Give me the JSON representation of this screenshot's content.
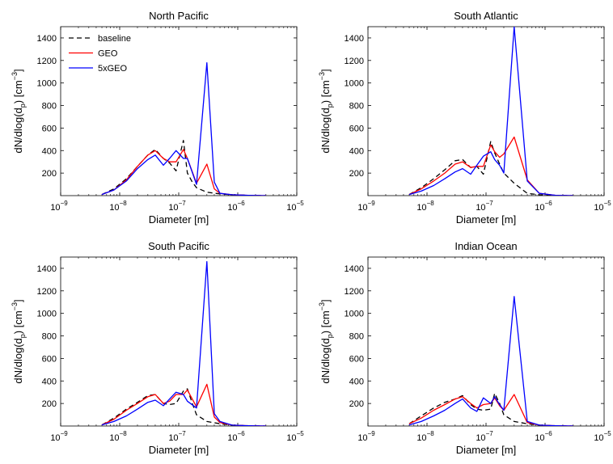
{
  "figure": {
    "y_tick_labels": [
      "200",
      "400",
      "600",
      "800",
      "1000",
      "1200",
      "1400"
    ],
    "x_tick_bases": [
      "10",
      "10",
      "10",
      "10",
      "10"
    ],
    "x_tick_exponents": [
      "−9",
      "−8",
      "−7",
      "−6",
      "−5"
    ],
    "ylabel_main": "dN/dlog(d",
    "ylabel_sub": "p",
    "ylabel_mid": ") [cm",
    "ylabel_sup": "−3",
    "ylabel_end": "]",
    "xlabel": "Diameter [m]"
  },
  "legend": {
    "entries": [
      {
        "label": "baseline",
        "color": "#000000",
        "dash": "6,4"
      },
      {
        "label": "GEO",
        "color": "#ff0000",
        "dash": ""
      },
      {
        "label": "5xGEO",
        "color": "#0000ff",
        "dash": ""
      }
    ]
  },
  "chart_data": [
    {
      "type": "line",
      "title": "North Pacific",
      "xscale": "log",
      "xlim": [
        1e-09,
        1e-05
      ],
      "ylim": [
        0,
        1500
      ],
      "xlabel": "Diameter [m]",
      "ylabel": "dN/dlog(d_p) [cm^-3]",
      "legend": "top-left",
      "series": [
        {
          "name": "baseline",
          "color": "#000000",
          "style": "dashed",
          "x": [
            5e-09,
            8e-09,
            1.3e-08,
            2e-08,
            3e-08,
            4e-08,
            5.5e-08,
            7e-08,
            9e-08,
            1.2e-07,
            1.4e-07,
            1.7e-07,
            2e-07,
            3e-07,
            5e-07,
            8e-07,
            1.5e-06,
            3e-06
          ],
          "y": [
            10,
            60,
            150,
            260,
            360,
            410,
            330,
            290,
            220,
            490,
            200,
            120,
            70,
            30,
            15,
            8,
            3,
            0
          ]
        },
        {
          "name": "GEO",
          "color": "#ff0000",
          "style": "solid",
          "x": [
            5e-09,
            8e-09,
            1.3e-08,
            2e-08,
            3e-08,
            4e-08,
            5.5e-08,
            7e-08,
            9e-08,
            1.2e-07,
            1.4e-07,
            2e-07,
            3e-07,
            4e-07,
            5e-07,
            8e-07,
            1.5e-06,
            3e-06
          ],
          "y": [
            10,
            50,
            140,
            260,
            360,
            400,
            330,
            300,
            300,
            410,
            330,
            110,
            280,
            60,
            20,
            8,
            3,
            0
          ]
        },
        {
          "name": "5xGEO",
          "color": "#0000ff",
          "style": "solid",
          "x": [
            5e-09,
            8e-09,
            1.3e-08,
            2e-08,
            3e-08,
            4e-08,
            5.5e-08,
            7e-08,
            9e-08,
            1.2e-07,
            1.4e-07,
            2e-07,
            3e-07,
            4e-07,
            5e-07,
            8e-07,
            1.5e-06,
            3e-06
          ],
          "y": [
            10,
            50,
            130,
            240,
            320,
            360,
            270,
            330,
            400,
            330,
            330,
            100,
            1180,
            120,
            20,
            8,
            3,
            0
          ]
        }
      ]
    },
    {
      "type": "line",
      "title": "South Atlantic",
      "xscale": "log",
      "xlim": [
        1e-09,
        1e-05
      ],
      "ylim": [
        0,
        1500
      ],
      "xlabel": "Diameter [m]",
      "ylabel": "dN/dlog(d_p) [cm^-3]",
      "series": [
        {
          "name": "baseline",
          "color": "#000000",
          "style": "dashed",
          "x": [
            5e-09,
            8e-09,
            1.3e-08,
            2e-08,
            3e-08,
            4e-08,
            5.5e-08,
            7e-08,
            9e-08,
            1.2e-07,
            1.4e-07,
            1.7e-07,
            2e-07,
            3e-07,
            5e-07,
            8e-07,
            1.5e-06,
            3e-06
          ],
          "y": [
            10,
            70,
            150,
            230,
            310,
            320,
            250,
            260,
            190,
            480,
            380,
            280,
            200,
            110,
            20,
            8,
            3,
            0
          ]
        },
        {
          "name": "GEO",
          "color": "#ff0000",
          "style": "solid",
          "x": [
            5e-09,
            8e-09,
            1.3e-08,
            2e-08,
            3e-08,
            4e-08,
            5.5e-08,
            7e-08,
            9e-08,
            1.2e-07,
            1.4e-07,
            1.7e-07,
            2e-07,
            3e-07,
            5e-07,
            8e-07,
            1.5e-06,
            3e-06
          ],
          "y": [
            10,
            60,
            130,
            200,
            280,
            300,
            250,
            260,
            260,
            450,
            390,
            340,
            370,
            520,
            140,
            20,
            3,
            0
          ]
        },
        {
          "name": "5xGEO",
          "color": "#0000ff",
          "style": "solid",
          "x": [
            5e-09,
            8e-09,
            1.3e-08,
            2e-08,
            3e-08,
            4e-08,
            5.5e-08,
            7e-08,
            9e-08,
            1.2e-07,
            1.4e-07,
            1.7e-07,
            2e-07,
            3e-07,
            5e-07,
            8e-07,
            1.5e-06,
            3e-06
          ],
          "y": [
            10,
            40,
            90,
            150,
            210,
            240,
            190,
            270,
            350,
            390,
            320,
            270,
            200,
            1500,
            130,
            20,
            3,
            0
          ]
        }
      ]
    },
    {
      "type": "line",
      "title": "South Pacific",
      "xscale": "log",
      "xlim": [
        1e-09,
        1e-05
      ],
      "ylim": [
        0,
        1500
      ],
      "xlabel": "Diameter [m]",
      "ylabel": "dN/dlog(d_p) [cm^-3]",
      "series": [
        {
          "name": "baseline",
          "color": "#000000",
          "style": "dashed",
          "x": [
            5e-09,
            8e-09,
            1.3e-08,
            2e-08,
            3e-08,
            4e-08,
            5.5e-08,
            7e-08,
            9e-08,
            1.2e-07,
            1.4e-07,
            1.7e-07,
            2e-07,
            3e-07,
            5e-07,
            8e-07,
            1.5e-06,
            3e-06
          ],
          "y": [
            10,
            70,
            150,
            210,
            270,
            280,
            200,
            190,
            200,
            310,
            330,
            200,
            100,
            40,
            20,
            8,
            3,
            0
          ]
        },
        {
          "name": "GEO",
          "color": "#ff0000",
          "style": "solid",
          "x": [
            5e-09,
            8e-09,
            1.3e-08,
            2e-08,
            3e-08,
            4e-08,
            5.5e-08,
            7e-08,
            9e-08,
            1.2e-07,
            1.4e-07,
            2e-07,
            3e-07,
            4e-07,
            5e-07,
            8e-07,
            1.5e-06,
            3e-06
          ],
          "y": [
            10,
            60,
            140,
            200,
            260,
            280,
            200,
            220,
            280,
            280,
            320,
            170,
            370,
            80,
            30,
            8,
            3,
            0
          ]
        },
        {
          "name": "5xGEO",
          "color": "#0000ff",
          "style": "solid",
          "x": [
            5e-09,
            8e-09,
            1.3e-08,
            2e-08,
            3e-08,
            4e-08,
            5.5e-08,
            7e-08,
            9e-08,
            1.2e-07,
            1.4e-07,
            2e-07,
            3e-07,
            4e-07,
            5e-07,
            8e-07,
            1.5e-06,
            3e-06
          ],
          "y": [
            10,
            40,
            90,
            150,
            210,
            230,
            180,
            240,
            300,
            280,
            220,
            160,
            1460,
            110,
            40,
            8,
            3,
            0
          ]
        }
      ]
    },
    {
      "type": "line",
      "title": "Indian Ocean",
      "xscale": "log",
      "xlim": [
        1e-09,
        1e-05
      ],
      "ylim": [
        0,
        1500
      ],
      "xlabel": "Diameter [m]",
      "ylabel": "dN/dlog(d_p) [cm^-3]",
      "series": [
        {
          "name": "baseline",
          "color": "#000000",
          "style": "dashed",
          "x": [
            5e-09,
            8e-09,
            1.3e-08,
            2e-08,
            3e-08,
            4e-08,
            5.5e-08,
            7e-08,
            9e-08,
            1.2e-07,
            1.4e-07,
            1.7e-07,
            2e-07,
            3e-07,
            5e-07,
            8e-07,
            1.5e-06,
            3e-06
          ],
          "y": [
            20,
            90,
            160,
            210,
            240,
            270,
            190,
            150,
            140,
            150,
            290,
            200,
            100,
            40,
            20,
            8,
            3,
            0
          ]
        },
        {
          "name": "GEO",
          "color": "#ff0000",
          "style": "solid",
          "x": [
            5e-09,
            8e-09,
            1.3e-08,
            2e-08,
            3e-08,
            4e-08,
            5.5e-08,
            7e-08,
            9e-08,
            1.2e-07,
            1.4e-07,
            1.7e-07,
            2e-07,
            3e-07,
            5e-07,
            8e-07,
            1.5e-06,
            3e-06
          ],
          "y": [
            20,
            70,
            140,
            190,
            240,
            260,
            200,
            160,
            190,
            200,
            250,
            180,
            140,
            280,
            30,
            8,
            3,
            0
          ]
        },
        {
          "name": "5xGEO",
          "color": "#0000ff",
          "style": "solid",
          "x": [
            5e-09,
            8e-09,
            1.3e-08,
            2e-08,
            3e-08,
            4e-08,
            5.5e-08,
            7e-08,
            9e-08,
            1.2e-07,
            1.4e-07,
            1.7e-07,
            2e-07,
            3e-07,
            5e-07,
            8e-07,
            1.5e-06,
            3e-06
          ],
          "y": [
            10,
            40,
            90,
            140,
            200,
            240,
            160,
            130,
            250,
            200,
            260,
            190,
            140,
            1150,
            40,
            8,
            3,
            0
          ]
        }
      ]
    }
  ]
}
